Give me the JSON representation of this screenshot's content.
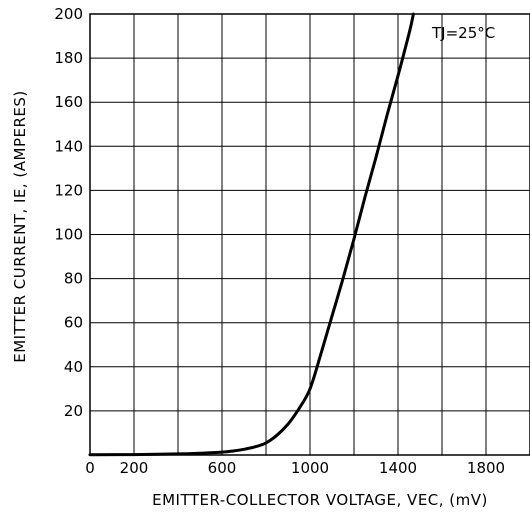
{
  "chart_data": {
    "type": "line",
    "annotation": "TJ=25°C",
    "xlabel": "EMITTER-COLLECTOR VOLTAGE, VEC, (mV)",
    "ylabel": "EMITTER CURRENT, IE, (AMPERES)",
    "xlim": [
      0,
      2000
    ],
    "ylim": [
      0,
      200
    ],
    "x_ticks": [
      0,
      200,
      600,
      1000,
      1400,
      1800
    ],
    "y_ticks": [
      20,
      40,
      60,
      80,
      100,
      120,
      140,
      160,
      180,
      200
    ],
    "grid": true,
    "series": [
      {
        "x": [
          0,
          200,
          400,
          500,
          600,
          650,
          700,
          750,
          800,
          850,
          900,
          950,
          1000,
          1050,
          1100,
          1150,
          1200,
          1250,
          1300,
          1350,
          1400,
          1450,
          1470
        ],
        "values": [
          0.1,
          0.2,
          0.5,
          0.8,
          1.3,
          1.8,
          2.6,
          3.7,
          5.5,
          9,
          14,
          21,
          30,
          46,
          63,
          80,
          98,
          117,
          135,
          154,
          172,
          191,
          200
        ]
      }
    ]
  }
}
